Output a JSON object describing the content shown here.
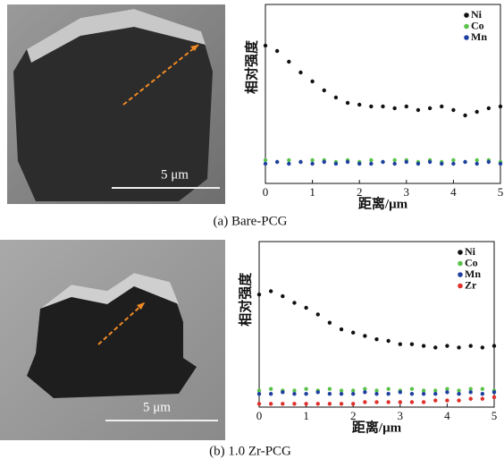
{
  "chart_data": [
    {
      "type": "scatter",
      "title": "(a) Bare-PCG",
      "xlabel": "距离/μm",
      "ylabel": "相对强度",
      "x": [
        0,
        0.25,
        0.5,
        0.75,
        1,
        1.25,
        1.5,
        1.75,
        2,
        2.25,
        2.5,
        2.75,
        3,
        3.25,
        3.5,
        3.75,
        4,
        4.25,
        4.5,
        4.75,
        5
      ],
      "xlim": [
        0,
        5
      ],
      "xticks": [
        0,
        1,
        2,
        3,
        4,
        5
      ],
      "ylim": [
        0,
        100
      ],
      "legend": "upper right",
      "series": [
        {
          "name": "Ni",
          "color": "#111111",
          "values": [
            77,
            74,
            68,
            62,
            57,
            52,
            48,
            45,
            44,
            43,
            43,
            42,
            43,
            41,
            42,
            43,
            41,
            38,
            40,
            42,
            43
          ]
        },
        {
          "name": "Co",
          "color": "#5ac24a",
          "values": [
            13,
            12,
            13,
            12,
            13,
            13,
            12,
            13,
            12,
            13,
            12,
            13,
            13,
            12,
            13,
            12,
            13,
            12,
            13,
            13,
            12
          ]
        },
        {
          "name": "Mn",
          "color": "#1f3fa0",
          "values": [
            11,
            12,
            11,
            12,
            11,
            12,
            11,
            12,
            11,
            11,
            12,
            11,
            12,
            11,
            12,
            11,
            11,
            12,
            11,
            12,
            11
          ]
        }
      ]
    },
    {
      "type": "scatter",
      "title": "(b) 1.0 Zr-PCG",
      "xlabel": "距离/μm",
      "ylabel": "相对强度",
      "x": [
        0,
        0.25,
        0.5,
        0.75,
        1,
        1.25,
        1.5,
        1.75,
        2,
        2.25,
        2.5,
        2.75,
        3,
        3.25,
        3.5,
        3.75,
        4,
        4.25,
        4.5,
        4.75,
        5
      ],
      "xlim": [
        0,
        5
      ],
      "xticks": [
        0,
        1,
        2,
        3,
        4,
        5
      ],
      "ylim": [
        0,
        100
      ],
      "legend": "upper right",
      "series": [
        {
          "name": "Ni",
          "color": "#111111",
          "values": [
            68,
            70,
            67,
            63,
            60,
            56,
            51,
            47,
            45,
            43,
            41,
            40,
            38,
            38,
            37,
            36,
            37,
            36,
            37,
            36,
            37
          ]
        },
        {
          "name": "Co",
          "color": "#5ac24a",
          "values": [
            10,
            11,
            10,
            10,
            11,
            10,
            11,
            10,
            10,
            11,
            10,
            11,
            10,
            11,
            10,
            10,
            11,
            10,
            11,
            11,
            10
          ]
        },
        {
          "name": "Mn",
          "color": "#1f3fa0",
          "values": [
            8,
            8,
            9,
            8,
            8,
            9,
            8,
            8,
            8,
            9,
            8,
            8,
            9,
            8,
            8,
            8,
            9,
            8,
            9,
            8,
            9
          ]
        },
        {
          "name": "Zr",
          "color": "#e0302a",
          "values": [
            2,
            2,
            2,
            2,
            2,
            2,
            2,
            2,
            2,
            3,
            3,
            3,
            3,
            3,
            3,
            4,
            4,
            4,
            5,
            5,
            6
          ]
        }
      ]
    }
  ],
  "images": [
    {
      "scale_bar": "5 μm"
    },
    {
      "scale_bar": "5 μm"
    }
  ]
}
